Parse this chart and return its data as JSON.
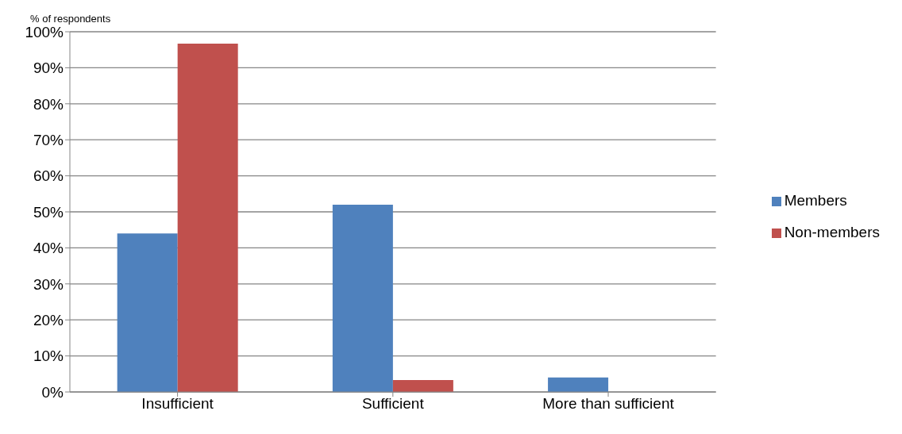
{
  "chart_data": {
    "type": "bar",
    "ylabel": "% of respondents",
    "categories": [
      "Insufficient",
      "Sufficient",
      "More than sufficient"
    ],
    "series": [
      {
        "name": "Members",
        "color": "#4f81bd",
        "values": [
          44,
          52,
          4
        ]
      },
      {
        "name": "Non-members",
        "color": "#c0504d",
        "values": [
          96.7,
          3.3,
          0
        ]
      }
    ],
    "ylim": [
      0,
      100
    ],
    "yticks": [
      {
        "value": 0,
        "label": "0%"
      },
      {
        "value": 10,
        "label": "10%"
      },
      {
        "value": 20,
        "label": "20%"
      },
      {
        "value": 30,
        "label": "30%"
      },
      {
        "value": 40,
        "label": "40%"
      },
      {
        "value": 50,
        "label": "50%"
      },
      {
        "value": 60,
        "label": "60%"
      },
      {
        "value": 70,
        "label": "70%"
      },
      {
        "value": 80,
        "label": "80%"
      },
      {
        "value": 90,
        "label": "90%"
      },
      {
        "value": 100,
        "label": "100%"
      }
    ],
    "grid": "y",
    "legend": "right"
  }
}
